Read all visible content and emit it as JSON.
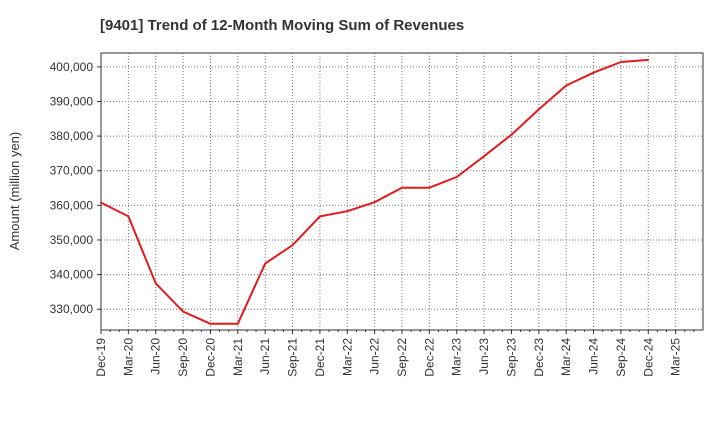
{
  "chart_data": {
    "type": "line",
    "title": "[9401]  Trend of 12-Month Moving Sum of Revenues",
    "ylabel": "Amount (million yen)",
    "xlabel": "",
    "ylim": [
      324000,
      404000
    ],
    "yticks": [
      330000,
      340000,
      350000,
      360000,
      370000,
      380000,
      390000,
      400000
    ],
    "ytick_labels": [
      "330,000",
      "340,000",
      "350,000",
      "360,000",
      "370,000",
      "380,000",
      "390,000",
      "400,000"
    ],
    "categories": [
      "Dec-19",
      "Mar-20",
      "Jun-20",
      "Sep-20",
      "Dec-20",
      "Mar-21",
      "Jun-21",
      "Sep-21",
      "Dec-21",
      "Mar-22",
      "Jun-22",
      "Sep-22",
      "Dec-22",
      "Mar-23",
      "Jun-23",
      "Sep-23",
      "Dec-23",
      "Mar-24",
      "Jun-24",
      "Sep-24",
      "Dec-24",
      "Mar-25"
    ],
    "grid": true,
    "series": [
      {
        "color": "#e31a1c",
        "values": [
          360800,
          356800,
          337500,
          329300,
          325800,
          325800,
          343200,
          348500,
          356800,
          358300,
          360900,
          365100,
          365100,
          368200,
          374200,
          380400,
          387700,
          394600,
          398300,
          401400,
          402000,
          null
        ]
      }
    ]
  }
}
